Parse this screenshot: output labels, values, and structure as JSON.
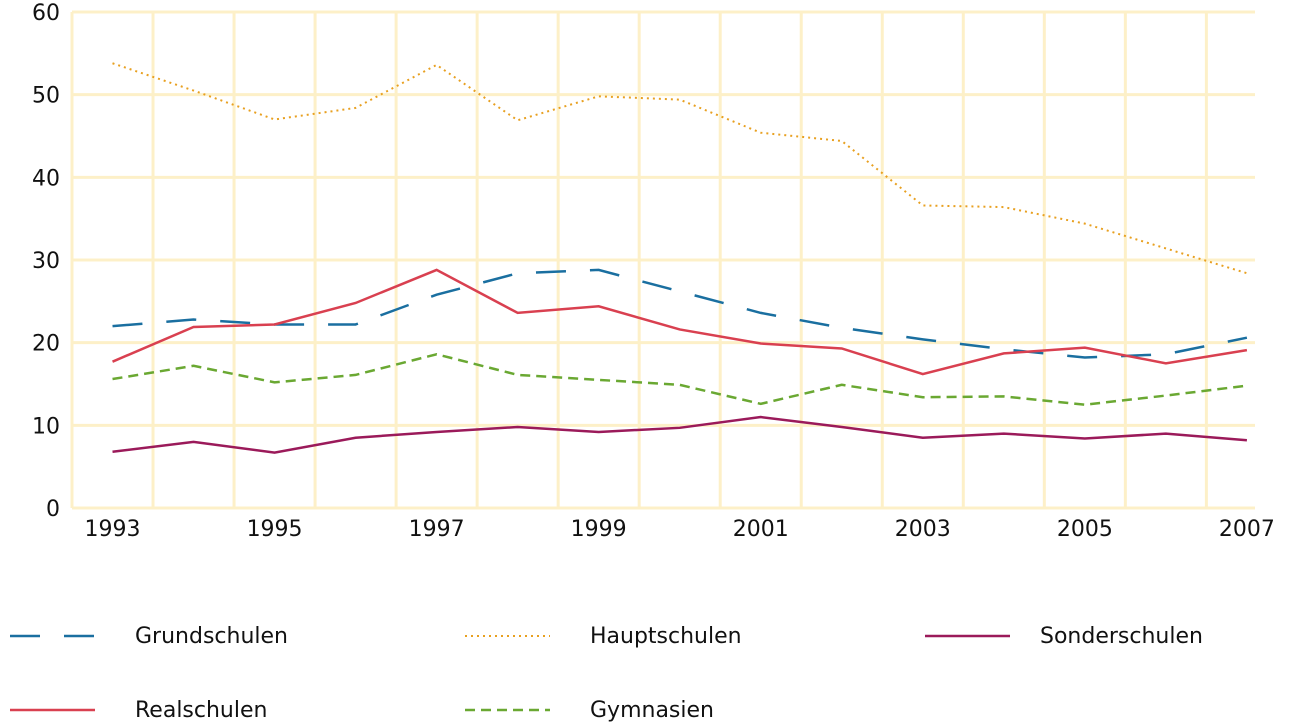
{
  "chart_data": {
    "type": "line",
    "x": [
      1993,
      1994,
      1995,
      1996,
      1997,
      1998,
      1999,
      2000,
      2001,
      2002,
      2003,
      2004,
      2005,
      2006,
      2007
    ],
    "xlim": [
      1992.5,
      2007.1
    ],
    "xticks": [
      1993,
      1995,
      1997,
      1999,
      2001,
      2003,
      2005,
      2007
    ],
    "ylim": [
      0,
      60
    ],
    "yticks": [
      0,
      10,
      20,
      30,
      40,
      50,
      60
    ],
    "grid": true,
    "legend": "bottom",
    "series": [
      {
        "name": "Grundschulen",
        "color": "#1a6fa0",
        "dash": "long",
        "values": [
          22.0,
          22.8,
          22.2,
          22.2,
          25.8,
          28.4,
          28.8,
          26.2,
          23.6,
          21.8,
          20.4,
          19.2,
          18.2,
          18.6,
          20.6
        ]
      },
      {
        "name": "Hauptschulen",
        "color": "#e8a020",
        "dash": "dotted",
        "values": [
          53.8,
          50.5,
          47.0,
          48.4,
          53.6,
          46.9,
          49.8,
          49.4,
          45.4,
          44.4,
          36.6,
          36.4,
          34.4,
          31.4,
          28.4
        ]
      },
      {
        "name": "Sonderschulen",
        "color": "#9b1a5a",
        "dash": "solid",
        "values": [
          6.8,
          8.0,
          6.7,
          8.5,
          9.2,
          9.8,
          9.2,
          9.7,
          11.0,
          9.8,
          8.5,
          9.0,
          8.4,
          9.0,
          8.2
        ]
      },
      {
        "name": "Realschulen",
        "color": "#d94050",
        "dash": "solid",
        "values": [
          17.7,
          21.9,
          22.2,
          24.8,
          28.8,
          23.6,
          24.4,
          21.6,
          19.9,
          19.3,
          16.2,
          18.7,
          19.4,
          17.5,
          19.1
        ]
      },
      {
        "name": "Gymnasien",
        "color": "#6aa832",
        "dash": "dashed",
        "values": [
          15.6,
          17.2,
          15.2,
          16.1,
          18.6,
          16.1,
          15.5,
          14.9,
          12.6,
          14.9,
          13.4,
          13.5,
          12.5,
          13.6,
          14.8
        ]
      }
    ]
  }
}
